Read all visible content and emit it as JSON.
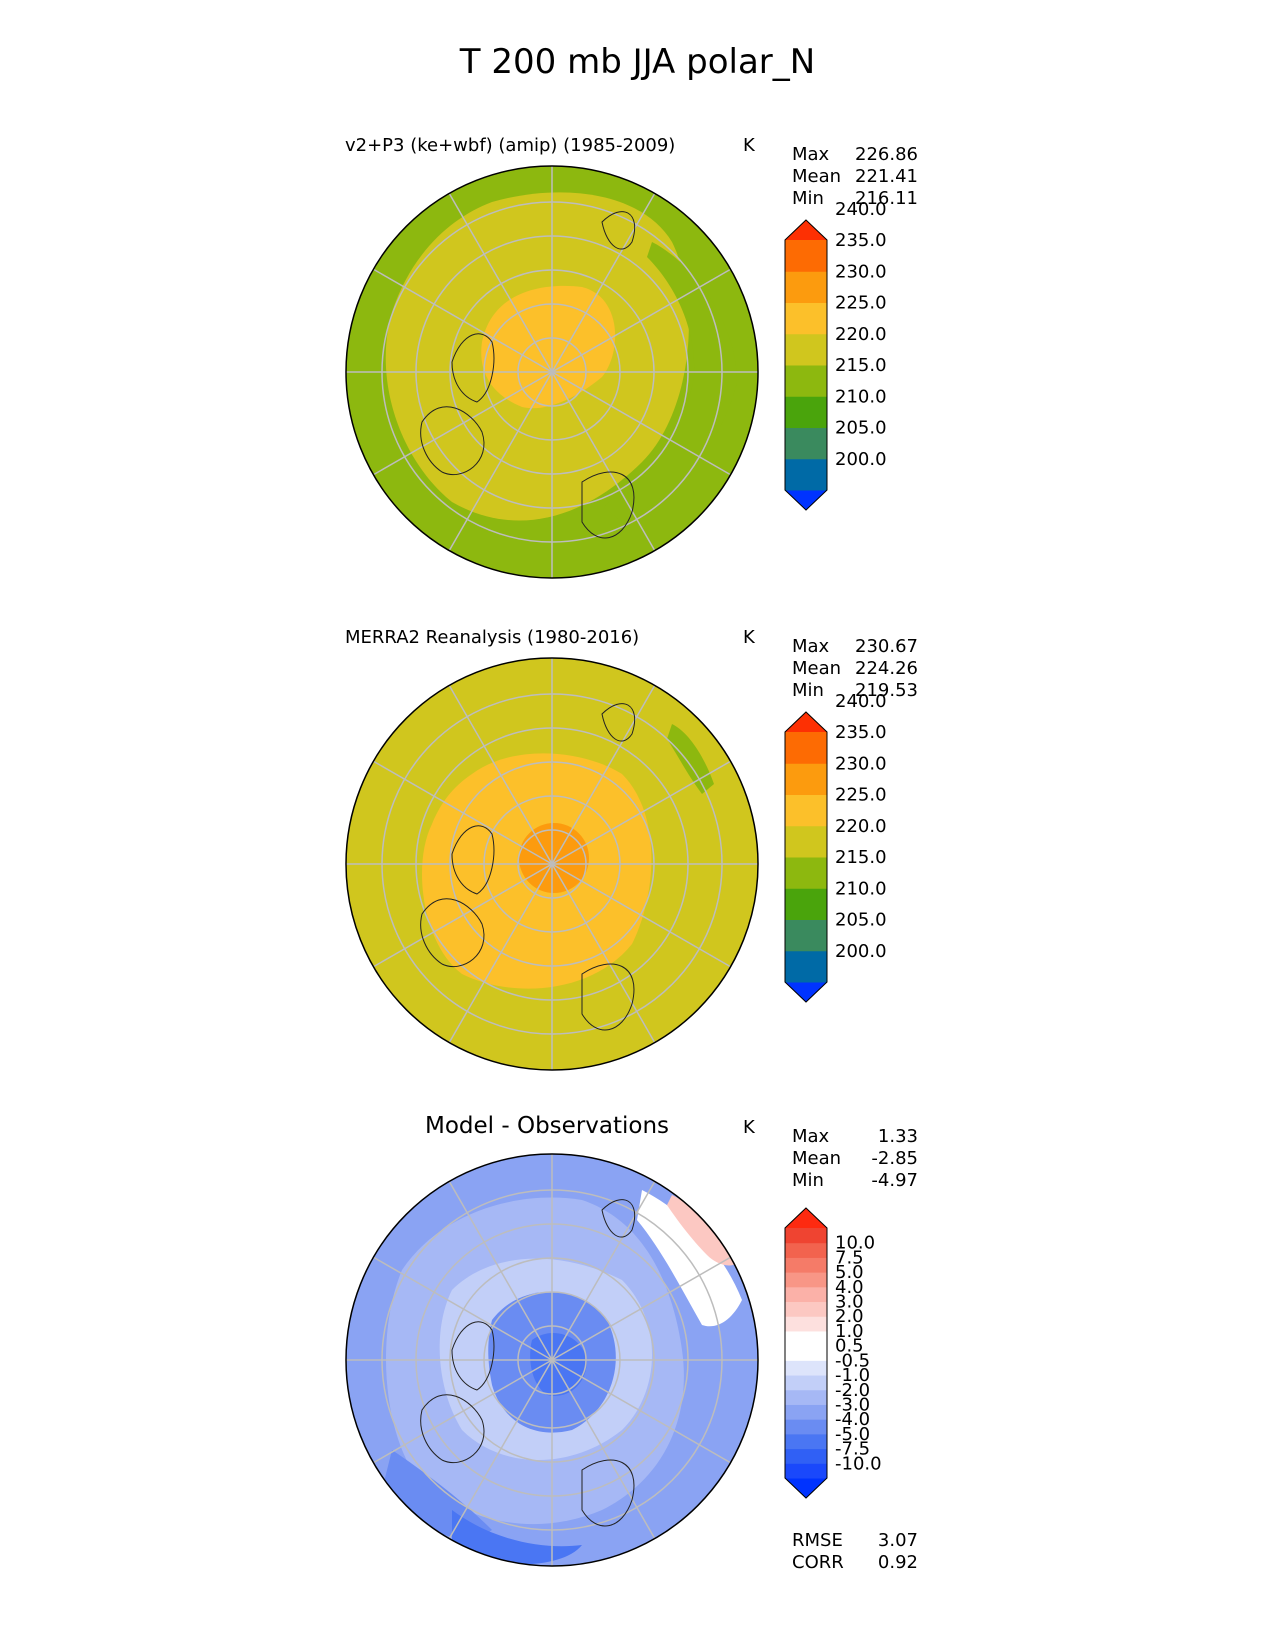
{
  "figure_title": "T 200 mb JJA polar_N",
  "panels": [
    {
      "id": "model",
      "subtitle": "v2+P3 (ke+wbf) (amip) (1985-2009)",
      "units": "K",
      "stats": [
        {
          "label": "Max",
          "value": "226.86"
        },
        {
          "label": "Mean",
          "value": "221.41"
        },
        {
          "label": "Min",
          "value": "216.11"
        }
      ],
      "colorbar": {
        "colors": [
          "#0033ff",
          "#006aa6",
          "#3a8a5e",
          "#4aa40c",
          "#8db80f",
          "#d0c61e",
          "#fcc02a",
          "#fc9b0e",
          "#fd6b03",
          "#fd3003"
        ],
        "ticks": [
          "200.0",
          "205.0",
          "210.0",
          "215.0",
          "220.0",
          "225.0",
          "230.0",
          "235.0",
          "240.0"
        ],
        "range": [
          200,
          240
        ]
      }
    },
    {
      "id": "obs",
      "subtitle": "MERRA2 Reanalysis (1980-2016)",
      "units": "K",
      "stats": [
        {
          "label": "Max",
          "value": "230.67"
        },
        {
          "label": "Mean",
          "value": "224.26"
        },
        {
          "label": "Min",
          "value": "219.53"
        }
      ],
      "colorbar": {
        "colors": [
          "#0033ff",
          "#006aa6",
          "#3a8a5e",
          "#4aa40c",
          "#8db80f",
          "#d0c61e",
          "#fcc02a",
          "#fc9b0e",
          "#fd6b03",
          "#fd3003"
        ],
        "ticks": [
          "200.0",
          "205.0",
          "210.0",
          "215.0",
          "220.0",
          "225.0",
          "230.0",
          "235.0",
          "240.0"
        ],
        "range": [
          200,
          240
        ]
      }
    },
    {
      "id": "diff",
      "subtitle": "Model - Observations",
      "units": "K",
      "stats": [
        {
          "label": "Max",
          "value": "1.33"
        },
        {
          "label": "Mean",
          "value": "-2.85"
        },
        {
          "label": "Min",
          "value": "-4.97"
        }
      ],
      "colorbar": {
        "colors": [
          "#0033ff",
          "#1a48fb",
          "#3060f5",
          "#4a76f3",
          "#6a8cf2",
          "#8aa3f3",
          "#a6b8f5",
          "#c2cff8",
          "#dde4fb",
          "#ffffff",
          "#ffffff",
          "#fde0de",
          "#fcc8c2",
          "#fbb1a8",
          "#f89686",
          "#f57b68",
          "#f2634e",
          "#ef4431",
          "#fd2a10"
        ],
        "ticks": [
          "-10.0",
          "-7.5",
          "-5.0",
          "-4.0",
          "-3.0",
          "-2.0",
          "-1.0",
          "-0.5",
          "0.5",
          "1.0",
          "2.0",
          "3.0",
          "4.0",
          "5.0",
          "7.5",
          "10.0"
        ],
        "range": [
          -10,
          10
        ]
      },
      "metrics": [
        {
          "label": "RMSE",
          "value": "3.07"
        },
        {
          "label": "CORR",
          "value": "0.92"
        }
      ]
    }
  ]
}
